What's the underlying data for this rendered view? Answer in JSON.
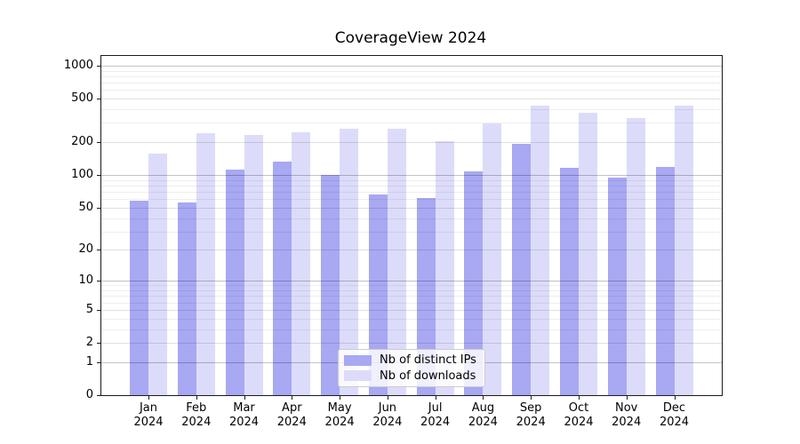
{
  "chart_data": {
    "type": "bar",
    "title": "CoverageView 2024",
    "categories": [
      "Jan",
      "Feb",
      "Mar",
      "Apr",
      "May",
      "Jun",
      "Jul",
      "Aug",
      "Sep",
      "Oct",
      "Nov",
      "Dec"
    ],
    "year_label": "2024",
    "series": [
      {
        "name": "Nb of distinct IPs",
        "color": "#a8a8f3",
        "values": [
          58,
          56,
          112,
          133,
          100,
          66,
          61,
          108,
          194,
          117,
          95,
          118
        ]
      },
      {
        "name": "Nb of downloads",
        "color": "#dcdcfa",
        "values": [
          157,
          242,
          233,
          246,
          265,
          265,
          204,
          295,
          435,
          370,
          330,
          430
        ]
      }
    ],
    "xlabel": "",
    "ylabel": "",
    "yscale": "log1p (y position proportional to log10(1+value))",
    "yticks": [
      0,
      1,
      2,
      5,
      10,
      20,
      50,
      100,
      200,
      500,
      1000
    ],
    "ylim": [
      0,
      1230
    ],
    "grid": "horizontal major (1,10,100,1000) + minor log gridlines",
    "legend_position": "lower center",
    "bar_style": "paired bars per month, semi-transparent"
  },
  "colors": {
    "ips_bar": "#a8a8f3",
    "downloads_bar": "#dcdcfa",
    "axis": "#1a1a1a",
    "grid_major": "#c3c3c3",
    "grid_minor": "#ededed",
    "background": "#ffffff"
  }
}
